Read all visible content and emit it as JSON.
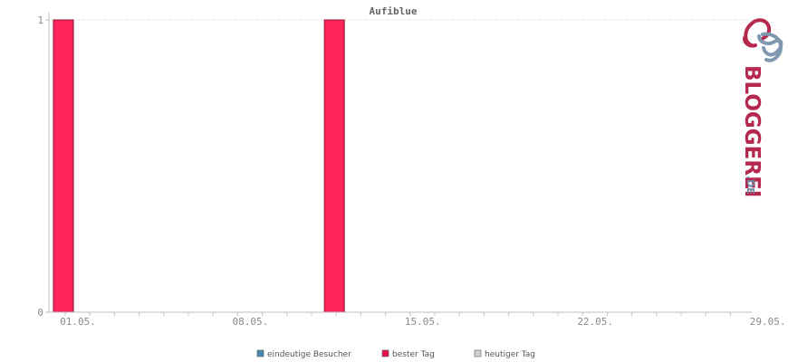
{
  "chart_data": {
    "type": "bar",
    "title": "Aufiblue",
    "xlabel": "",
    "ylabel": "",
    "ylim": [
      0,
      1
    ],
    "y_ticks": [
      "0",
      "1"
    ],
    "x_tick_labels": [
      "01.05.",
      "08.05.",
      "15.05.",
      "22.05.",
      "29.05."
    ],
    "days": [
      1,
      2,
      3,
      4,
      5,
      6,
      7,
      8,
      9,
      10,
      11,
      12,
      13,
      14,
      15,
      16,
      17,
      18,
      19,
      20,
      21,
      22,
      23,
      24,
      25,
      26,
      27,
      28,
      29,
      30,
      31
    ],
    "series": [
      {
        "name": "bester Tag",
        "color": "#ff2459",
        "values": [
          1,
          0,
          0,
          0,
          0,
          0,
          0,
          0,
          0,
          0,
          0,
          1,
          0,
          0,
          0,
          0,
          0,
          0,
          0,
          0,
          0,
          0,
          0,
          0,
          0,
          0,
          0,
          0,
          0,
          0,
          0
        ]
      }
    ],
    "grid": "dotted line at y=1",
    "legend": [
      {
        "label": "eindeutige Besucher",
        "color": "#4a8ab0"
      },
      {
        "label": "bester Tag",
        "color": "#e8124a"
      },
      {
        "label": "heutiger Tag",
        "color": "#d4d4d4"
      }
    ],
    "legend_position": "bottom-center"
  },
  "logo": {
    "text": "BLOGGEREI",
    "suffix": ".DE",
    "primary_color": "#b5294f",
    "secondary_color": "#6d8aa6"
  }
}
